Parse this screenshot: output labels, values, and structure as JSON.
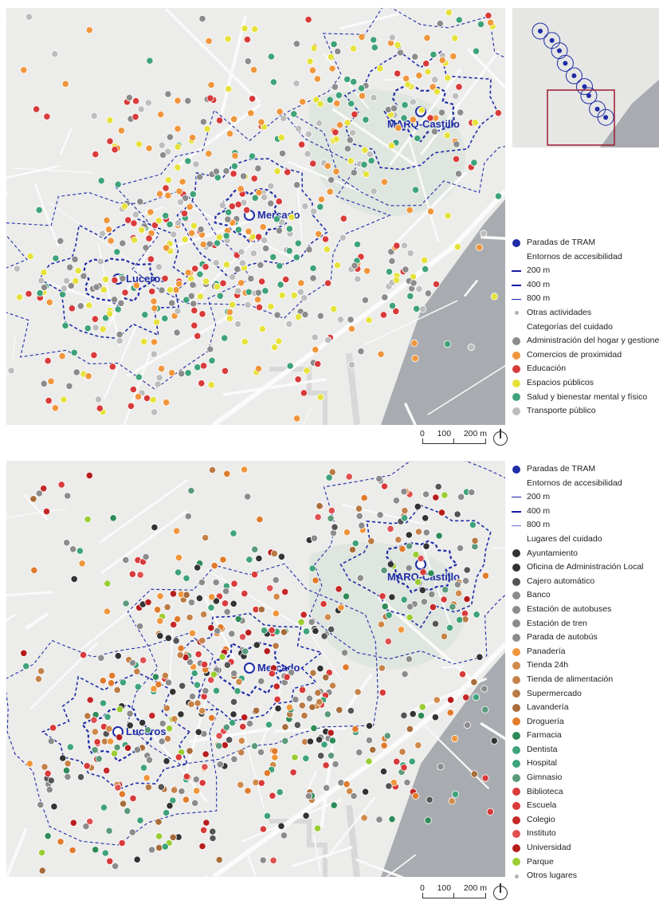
{
  "colors": {
    "tram": "#1f2da6",
    "gray": "#8c8c8c",
    "orange": "#f0963c",
    "red": "#d93a3a",
    "yellow": "#e6e23c",
    "green": "#3fa37a",
    "lightgray": "#bdbdbd",
    "brown": "#b97a45",
    "dark": "#333333",
    "lime": "#9acd32",
    "frame": "#9b1b30"
  },
  "map1": {
    "stations": [
      {
        "name": "MARQ-Castillo"
      },
      {
        "name": "Mercado"
      },
      {
        "name": "Luceros"
      }
    ],
    "scale": {
      "labels": [
        "0",
        "100",
        "200 m"
      ]
    },
    "legend": {
      "tram_stop": "Paradas de TRAM",
      "access_title": "Entornos de accesibilidad",
      "rings": [
        "200 m",
        "400 m",
        "800 m"
      ],
      "other": "Otras actividades",
      "cat_title": "Categorías del cuidado",
      "categories": [
        {
          "label": "Administración del hogar y gestiones",
          "color": "#8c8c8c",
          "icon": "admin-icon"
        },
        {
          "label": "Comercios de proximidad",
          "color": "#f0963c",
          "icon": "shop-icon"
        },
        {
          "label": "Educación",
          "color": "#d93a3a",
          "icon": "education-icon"
        },
        {
          "label": "Espacios públicos",
          "color": "#e6e23c",
          "icon": "public-space-icon"
        },
        {
          "label": "Salud y bienestar mental y físico",
          "color": "#3fa37a",
          "icon": "health-icon"
        },
        {
          "label": "Transporte público",
          "color": "#bdbdbd",
          "icon": "transport-icon"
        }
      ]
    }
  },
  "map2": {
    "stations": [
      {
        "name": "MARQ-Castillo"
      },
      {
        "name": "Mercado"
      },
      {
        "name": "Luceros"
      }
    ],
    "scale": {
      "labels": [
        "0",
        "100",
        "200 m"
      ]
    },
    "legend": {
      "tram_stop": "Paradas de TRAM",
      "access_title": "Entornos de accesibilidad",
      "rings": [
        "200 m",
        "400 m",
        "800 m"
      ],
      "places_title": "Lugares del cuidado",
      "places": [
        {
          "label": "Ayuntamiento",
          "color": "#333333",
          "icon": "city-hall-icon"
        },
        {
          "label": "Oficina de Administración Local",
          "color": "#333333",
          "icon": "info-icon"
        },
        {
          "label": "Cajero automático",
          "color": "#555555",
          "icon": "atm-icon"
        },
        {
          "label": "Banco",
          "color": "#8c8c8c",
          "icon": "bank-icon"
        },
        {
          "label": "Estación de autobuses",
          "color": "#8c8c8c",
          "icon": "bus-station-icon"
        },
        {
          "label": "Estación de tren",
          "color": "#8c8c8c",
          "icon": "train-station-icon"
        },
        {
          "label": "Parada de autobús",
          "color": "#8c8c8c",
          "icon": "bus-stop-icon"
        },
        {
          "label": "Panadería",
          "color": "#f0963c",
          "icon": "bakery-icon"
        },
        {
          "label": "Tienda 24h",
          "color": "#d08a4a",
          "icon": "store-24h-icon"
        },
        {
          "label": "Tienda de alimentación",
          "color": "#c4824a",
          "icon": "grocery-icon"
        },
        {
          "label": "Supermercado",
          "color": "#b97a45",
          "icon": "supermarket-icon"
        },
        {
          "label": "Lavandería",
          "color": "#a86c3a",
          "icon": "laundry-icon"
        },
        {
          "label": "Droguería",
          "color": "#e07b2c",
          "icon": "drugstore-icon"
        },
        {
          "label": "Farmacia",
          "color": "#2e8b57",
          "icon": "pharmacy-icon"
        },
        {
          "label": "Dentista",
          "color": "#3fa37a",
          "icon": "dentist-icon"
        },
        {
          "label": "Hospital",
          "color": "#3fa37a",
          "icon": "hospital-icon"
        },
        {
          "label": "Gimnasio",
          "color": "#5a9a7a",
          "icon": "gym-icon"
        },
        {
          "label": "Biblioteca",
          "color": "#d93a3a",
          "icon": "library-icon"
        },
        {
          "label": "Escuela",
          "color": "#d93a3a",
          "icon": "school-icon"
        },
        {
          "label": "Colegio",
          "color": "#c62828",
          "icon": "college-icon"
        },
        {
          "label": "Instituto",
          "color": "#e05050",
          "icon": "institute-icon"
        },
        {
          "label": "Universidad",
          "color": "#b71c1c",
          "icon": "university-icon"
        },
        {
          "label": "Parque",
          "color": "#9acd32",
          "icon": "park-icon"
        }
      ],
      "other": "Otros lugares"
    }
  }
}
